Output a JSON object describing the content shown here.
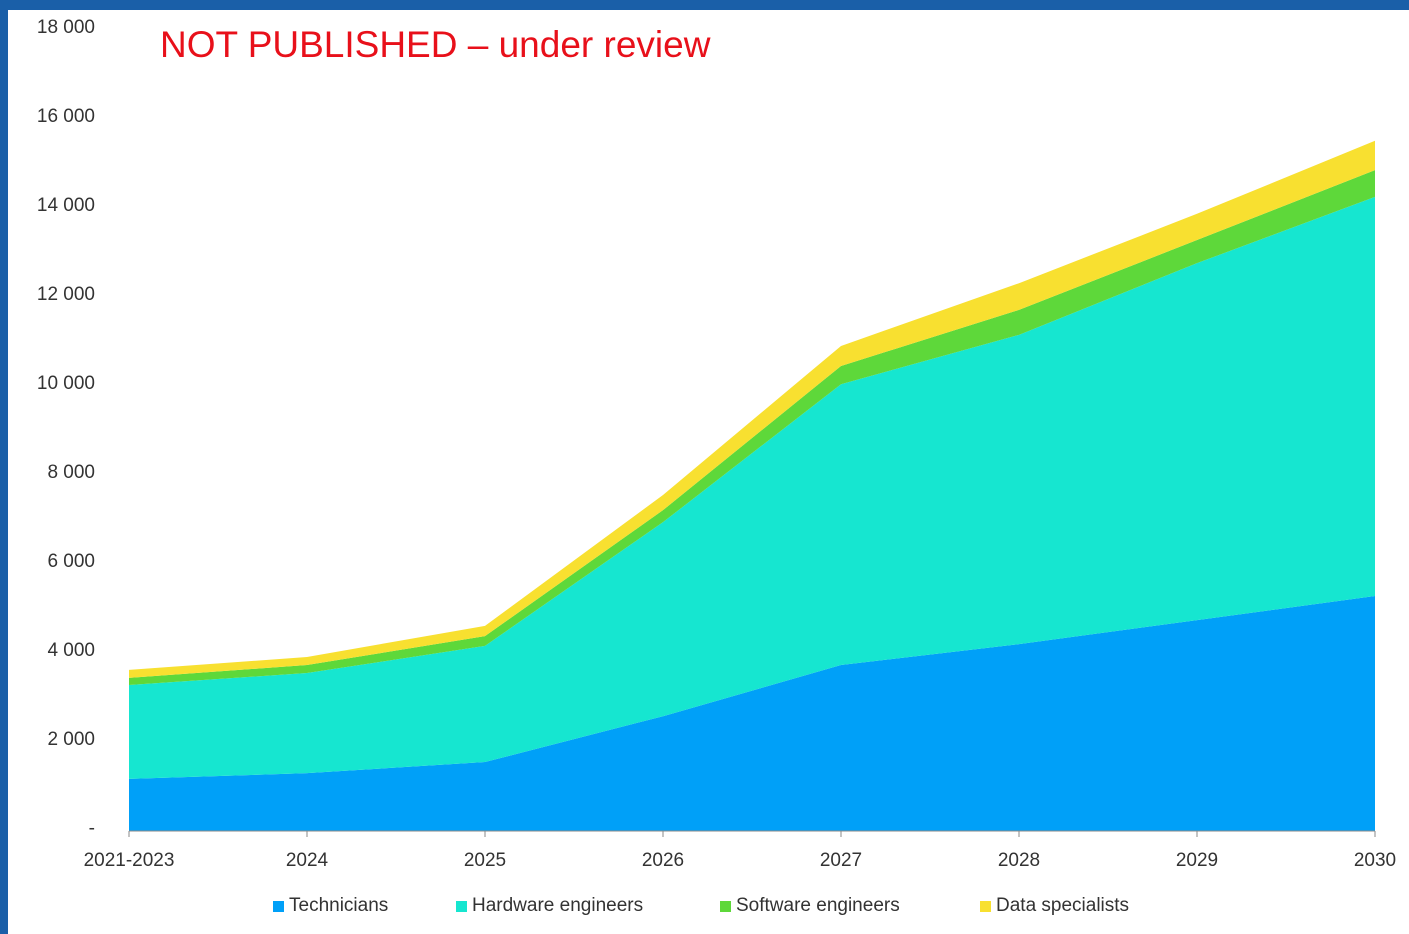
{
  "chart_data": {
    "type": "stacked_area",
    "annotation": "NOT PUBLISHED – under review",
    "categories": [
      "2021-2023",
      "2024",
      "2025",
      "2026",
      "2027",
      "2028",
      "2029",
      "2030"
    ],
    "series": [
      {
        "name": "Technicians",
        "color": "#00a0f8",
        "values": [
          1170,
          1300,
          1550,
          2580,
          3730,
          4200,
          4740,
          5280
        ]
      },
      {
        "name": "Hardware engineers",
        "color": "#16e6d0",
        "values": [
          2110,
          2250,
          2610,
          4360,
          6310,
          6950,
          8020,
          8970
        ]
      },
      {
        "name": "Software engineers",
        "color": "#5ed83a",
        "values": [
          160,
          180,
          220,
          270,
          410,
          560,
          520,
          600
        ]
      },
      {
        "name": "Data specialists",
        "color": "#f8e030",
        "values": [
          180,
          180,
          230,
          340,
          450,
          600,
          590,
          660
        ]
      }
    ],
    "ylim": [
      0,
      18000
    ],
    "yticks": [
      {
        "value": 0,
        "label": "-"
      },
      {
        "value": 2000,
        "label": "2 000"
      },
      {
        "value": 4000,
        "label": "4 000"
      },
      {
        "value": 6000,
        "label": "6 000"
      },
      {
        "value": 8000,
        "label": "8 000"
      },
      {
        "value": 10000,
        "label": "10 000"
      },
      {
        "value": 12000,
        "label": "12 000"
      },
      {
        "value": 14000,
        "label": "14 000"
      },
      {
        "value": 16000,
        "label": "16 000"
      },
      {
        "value": 18000,
        "label": "18 000"
      }
    ],
    "legend": "bottom"
  }
}
